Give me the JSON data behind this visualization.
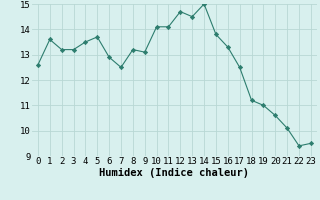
{
  "x": [
    0,
    1,
    2,
    3,
    4,
    5,
    6,
    7,
    8,
    9,
    10,
    11,
    12,
    13,
    14,
    15,
    16,
    17,
    18,
    19,
    20,
    21,
    22,
    23
  ],
  "y": [
    12.6,
    13.6,
    13.2,
    13.2,
    13.5,
    13.7,
    12.9,
    12.5,
    13.2,
    13.1,
    14.1,
    14.1,
    14.7,
    14.5,
    15.0,
    13.8,
    13.3,
    12.5,
    11.2,
    11.0,
    10.6,
    10.1,
    9.4,
    9.5
  ],
  "line_color": "#2d7d6e",
  "marker": "D",
  "marker_size": 2.2,
  "bg_color": "#d8f0ee",
  "grid_color": "#b8d8d4",
  "xlabel": "Humidex (Indice chaleur)",
  "xlabel_fontsize": 7.5,
  "tick_fontsize": 6.5,
  "ylim": [
    9,
    15
  ],
  "xlim": [
    -0.5,
    23.5
  ],
  "yticks": [
    9,
    10,
    11,
    12,
    13,
    14,
    15
  ],
  "xticks": [
    0,
    1,
    2,
    3,
    4,
    5,
    6,
    7,
    8,
    9,
    10,
    11,
    12,
    13,
    14,
    15,
    16,
    17,
    18,
    19,
    20,
    21,
    22,
    23
  ]
}
